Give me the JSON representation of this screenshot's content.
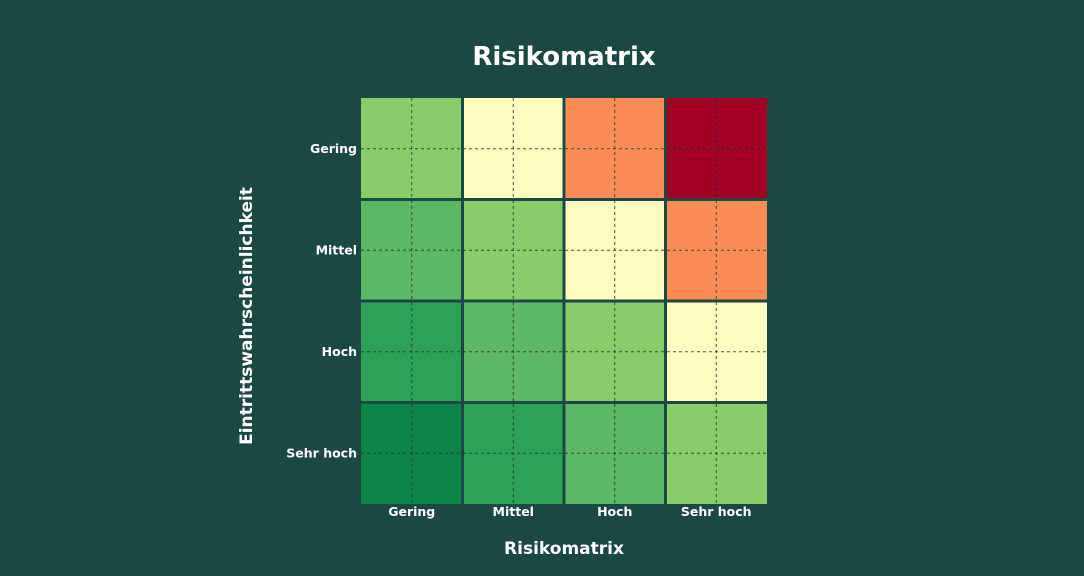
{
  "chart_data": {
    "type": "heatmap",
    "title": "Risikomatrix",
    "xlabel": "Risikomatrix",
    "ylabel": "Eintrittswahrscheinlichkeit",
    "x_categories": [
      "Gering",
      "Mittel",
      "Hoch",
      "Sehr hoch"
    ],
    "y_categories": [
      "Gering",
      "Mittel",
      "Hoch",
      "Sehr hoch"
    ],
    "values": [
      [
        2,
        3,
        4,
        5
      ],
      [
        1,
        2,
        3,
        4
      ],
      [
        0,
        1,
        2,
        3
      ],
      [
        -1,
        0,
        1,
        2
      ]
    ],
    "colorscale": {
      "-1": "#0e8446",
      "0": "#2ca157",
      "1": "#5db866",
      "2": "#89cc6a",
      "3": "#fefcc1",
      "4": "#fa8d56",
      "5": "#a30026"
    },
    "grid": true
  }
}
